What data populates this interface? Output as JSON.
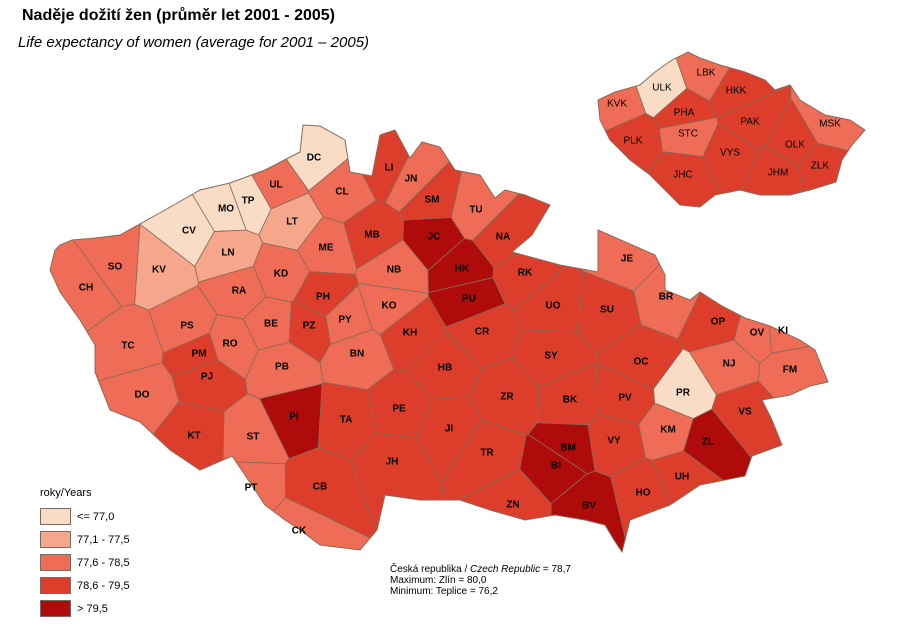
{
  "title": "Naděje dožití žen (průměr let 2001 - 2005)",
  "subtitle": "Life expectancy of women (average for 2001 – 2005)",
  "legend": {
    "title": "roky/Years",
    "classes": [
      {
        "label": "<= 77,0",
        "color": "#f8dcc6"
      },
      {
        "label": "77,1 - 77,5",
        "color": "#f6a68a"
      },
      {
        "label": "77,6 - 78,5",
        "color": "#ef6c57"
      },
      {
        "label": "78,6 - 79,5",
        "color": "#dc3e2b"
      },
      {
        "label": "> 79,5",
        "color": "#b00b0b"
      }
    ]
  },
  "notes": {
    "cr_label_cz": "Česká republika / ",
    "cr_label_en": "Czech Republic",
    "cr_value": " = 78,7",
    "maximum": "Maximum: Zlín = 80,0",
    "minimum": "Minimum: Teplice = 76,2"
  },
  "border_color": "#8a6a58",
  "districts": [
    {
      "code": "DC",
      "class": 1
    },
    {
      "code": "UL",
      "class": 3
    },
    {
      "code": "TP",
      "class": 1
    },
    {
      "code": "MO",
      "class": 1
    },
    {
      "code": "CV",
      "class": 1
    },
    {
      "code": "LT",
      "class": 2
    },
    {
      "code": "CL",
      "class": 3
    },
    {
      "code": "LI",
      "class": 4
    },
    {
      "code": "JN",
      "class": 3
    },
    {
      "code": "SM",
      "class": 4
    },
    {
      "code": "TU",
      "class": 3
    },
    {
      "code": "NA",
      "class": 4
    },
    {
      "code": "JC",
      "class": 5
    },
    {
      "code": "MB",
      "class": 4
    },
    {
      "code": "ME",
      "class": 3
    },
    {
      "code": "LN",
      "class": 2
    },
    {
      "code": "KV",
      "class": 2
    },
    {
      "code": "SO",
      "class": 3
    },
    {
      "code": "CH",
      "class": 3
    },
    {
      "code": "RA",
      "class": 3
    },
    {
      "code": "KD",
      "class": 3
    },
    {
      "code": "PH",
      "class": 4
    },
    {
      "code": "PZ",
      "class": 4
    },
    {
      "code": "PY",
      "class": 3
    },
    {
      "code": "BE",
      "class": 3
    },
    {
      "code": "KO",
      "class": 3
    },
    {
      "code": "NB",
      "class": 3
    },
    {
      "code": "HK",
      "class": 5
    },
    {
      "code": "PU",
      "class": 5
    },
    {
      "code": "RK",
      "class": 4
    },
    {
      "code": "JE",
      "class": 3
    },
    {
      "code": "BR",
      "class": 3
    },
    {
      "code": "SU",
      "class": 4
    },
    {
      "code": "UO",
      "class": 4
    },
    {
      "code": "CR",
      "class": 4
    },
    {
      "code": "KH",
      "class": 4
    },
    {
      "code": "BN",
      "class": 3
    },
    {
      "code": "PS",
      "class": 3
    },
    {
      "code": "RO",
      "class": 3
    },
    {
      "code": "TC",
      "class": 3
    },
    {
      "code": "PM",
      "class": 4
    },
    {
      "code": "PJ",
      "class": 4
    },
    {
      "code": "DO",
      "class": 3
    },
    {
      "code": "PB",
      "class": 3
    },
    {
      "code": "HB",
      "class": 4
    },
    {
      "code": "SY",
      "class": 4
    },
    {
      "code": "OC",
      "class": 4
    },
    {
      "code": "OP",
      "class": 4
    },
    {
      "code": "OV",
      "class": 3
    },
    {
      "code": "KI",
      "class": 3
    },
    {
      "code": "NJ",
      "class": 3
    },
    {
      "code": "FM",
      "class": 3
    },
    {
      "code": "PR",
      "class": 1
    },
    {
      "code": "KM",
      "class": 3
    },
    {
      "code": "ZL",
      "class": 5
    },
    {
      "code": "VS",
      "class": 4
    },
    {
      "code": "UH",
      "class": 4
    },
    {
      "code": "HO",
      "class": 4
    },
    {
      "code": "VY",
      "class": 4
    },
    {
      "code": "PV",
      "class": 4
    },
    {
      "code": "BK",
      "class": 4
    },
    {
      "code": "BM",
      "class": 5
    },
    {
      "code": "BI",
      "class": 5
    },
    {
      "code": "BV",
      "class": 5
    },
    {
      "code": "ZR",
      "class": 4
    },
    {
      "code": "JI",
      "class": 4
    },
    {
      "code": "TR",
      "class": 4
    },
    {
      "code": "ZN",
      "class": 4
    },
    {
      "code": "PE",
      "class": 4
    },
    {
      "code": "JH",
      "class": 4
    },
    {
      "code": "TA",
      "class": 4
    },
    {
      "code": "PI",
      "class": 5
    },
    {
      "code": "ST",
      "class": 3
    },
    {
      "code": "KT",
      "class": 4
    },
    {
      "code": "PT",
      "class": 3
    },
    {
      "code": "CB",
      "class": 4
    },
    {
      "code": "CK",
      "class": 3
    }
  ],
  "regions": [
    {
      "code": "ULK",
      "class": 1
    },
    {
      "code": "LBK",
      "class": 3
    },
    {
      "code": "KVK",
      "class": 3
    },
    {
      "code": "PHA",
      "class": 4
    },
    {
      "code": "STC",
      "class": 3
    },
    {
      "code": "HKK",
      "class": 4
    },
    {
      "code": "PAK",
      "class": 4
    },
    {
      "code": "PLK",
      "class": 4
    },
    {
      "code": "VYS",
      "class": 4
    },
    {
      "code": "MSK",
      "class": 3
    },
    {
      "code": "OLK",
      "class": 4
    },
    {
      "code": "JHM",
      "class": 4
    },
    {
      "code": "ZLK",
      "class": 4
    },
    {
      "code": "JHC",
      "class": 4
    }
  ]
}
